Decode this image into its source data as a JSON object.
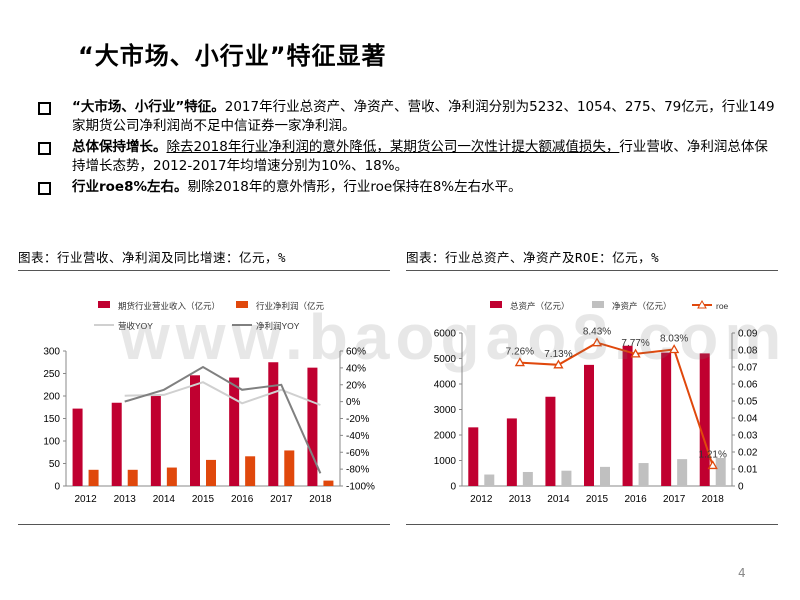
{
  "title": "“大市场、小行业”特征显著",
  "bullets": [
    {
      "bold": "“大市场、小行业”特征。",
      "text": "2017年行业总资产、净资产、营收、净利润分别为5232、1054、275、79亿元，行业149家期货公司净利润尚不足中信证券一家净利润。"
    },
    {
      "bold": "总体保持增长。",
      "underlined": "除去2018年行业净利润的意外降低，某期货公司一次性计提大额减值损失，",
      "text": "行业营收、净利润总体保持增长态势，2012-2017年均增速分别为10%、18%。"
    },
    {
      "bold": "行业roe8%左右。",
      "text": "剔除2018年的意外情形，行业roe保持在8%左右水平。"
    }
  ],
  "captions": {
    "left": "图表：行业营收、净利润及同比增速：亿元，%",
    "right": "图表：行业总资产、净资产及ROE：亿元，%"
  },
  "watermark": "www.baogao8.com",
  "page_number": "4",
  "colors": {
    "red": "#c00030",
    "orange": "#e0480c",
    "gray": "#c0c0c0",
    "darkgray": "#808080",
    "lightgray": "#d0d0d0"
  },
  "chart_data": [
    {
      "type": "bar",
      "categories": [
        "2012",
        "2013",
        "2014",
        "2015",
        "2016",
        "2017",
        "2018"
      ],
      "series": [
        {
          "name": "期货行业营业收入（亿元）",
          "kind": "bar",
          "axis": "left",
          "color": "#c00030",
          "values": [
            172,
            185,
            200,
            246,
            241,
            275,
            263
          ]
        },
        {
          "name": "行业净利润（亿元",
          "kind": "bar",
          "axis": "left",
          "color": "#e0480c",
          "values": [
            36,
            36,
            41,
            58,
            66,
            79,
            12
          ]
        },
        {
          "name": "营收YOY",
          "kind": "line",
          "axis": "right",
          "color": "#d0d0d0",
          "values": [
            null,
            7,
            8,
            23,
            -2,
            14,
            -4
          ]
        },
        {
          "name": "净利润YOY",
          "kind": "line",
          "axis": "right",
          "color": "#808080",
          "values": [
            null,
            0,
            14,
            41,
            14,
            20,
            -85
          ]
        }
      ],
      "yticks_left": [
        "300",
        "250",
        "200",
        "150",
        "100",
        "50",
        "0"
      ],
      "yticks_right": [
        "60%",
        "40%",
        "20%",
        "0%",
        "-20%",
        "-40%",
        "-60%",
        "-80%",
        "-100%"
      ],
      "ylim_left": [
        0,
        300
      ],
      "ylim_right": [
        -100,
        60
      ],
      "legend": "top"
    },
    {
      "type": "bar",
      "categories": [
        "2012",
        "2013",
        "2014",
        "2015",
        "2016",
        "2017",
        "2018"
      ],
      "series": [
        {
          "name": "总资产（亿元）",
          "kind": "bar",
          "axis": "left",
          "color": "#c00030",
          "values": [
            2300,
            2650,
            3500,
            4750,
            5500,
            5232,
            5200
          ]
        },
        {
          "name": "净资产（亿元）",
          "kind": "bar",
          "axis": "left",
          "color": "#c0c0c0",
          "values": [
            450,
            550,
            600,
            750,
            900,
            1054,
            1100
          ]
        },
        {
          "name": "roe",
          "kind": "line",
          "axis": "right",
          "color": "#e0480c",
          "values": [
            null,
            0.0726,
            0.0713,
            0.0843,
            0.0777,
            0.0803,
            0.0121
          ]
        }
      ],
      "data_labels": [
        "",
        "7.26%",
        "7.13%",
        "8.43%",
        "7.77%",
        "8.03%",
        "1.21%"
      ],
      "yticks_left": [
        "6000",
        "5000",
        "4000",
        "3000",
        "2000",
        "1000",
        "0"
      ],
      "yticks_right": [
        "0.09",
        "0.08",
        "0.07",
        "0.06",
        "0.05",
        "0.04",
        "0.03",
        "0.02",
        "0.01",
        "0"
      ],
      "ylim_left": [
        0,
        6000
      ],
      "ylim_right": [
        0,
        0.09
      ],
      "legend": "top"
    }
  ]
}
